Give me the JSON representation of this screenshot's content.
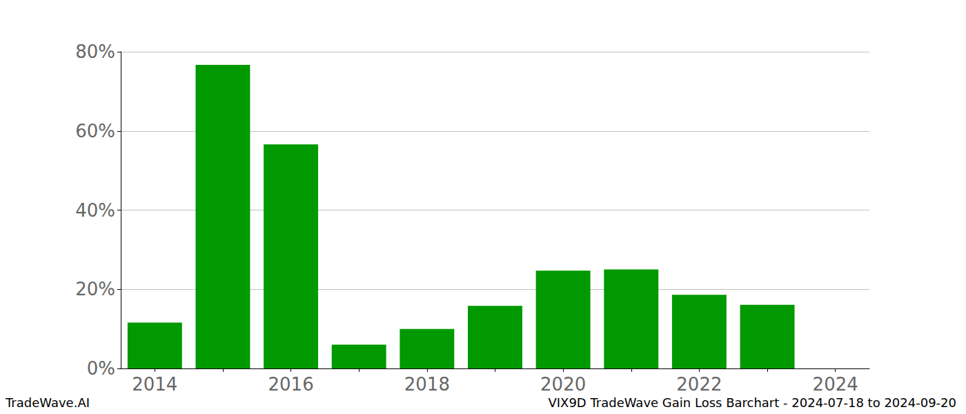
{
  "chart_data": {
    "type": "bar",
    "title": "VIX9D TradeWave Gain Loss Barchart - 2024-07-18 to 2024-09-20",
    "annotations": [
      "TradeWave.AI"
    ],
    "categories": [
      "2014",
      null,
      "2016",
      null,
      "2018",
      null,
      "2020",
      null,
      "2022",
      null,
      "2024"
    ],
    "values": [
      11.6,
      76.7,
      56.6,
      6.0,
      10.0,
      15.8,
      24.7,
      25.0,
      18.6,
      16.1,
      null
    ],
    "color": "#009900",
    "ylim": [
      0,
      80
    ],
    "yticks": [
      {
        "value": 0,
        "label": "0%"
      },
      {
        "value": 20,
        "label": "20%"
      },
      {
        "value": 40,
        "label": "40%"
      },
      {
        "value": 60,
        "label": "60%"
      },
      {
        "value": 80,
        "label": "80%"
      }
    ],
    "grid": true
  }
}
